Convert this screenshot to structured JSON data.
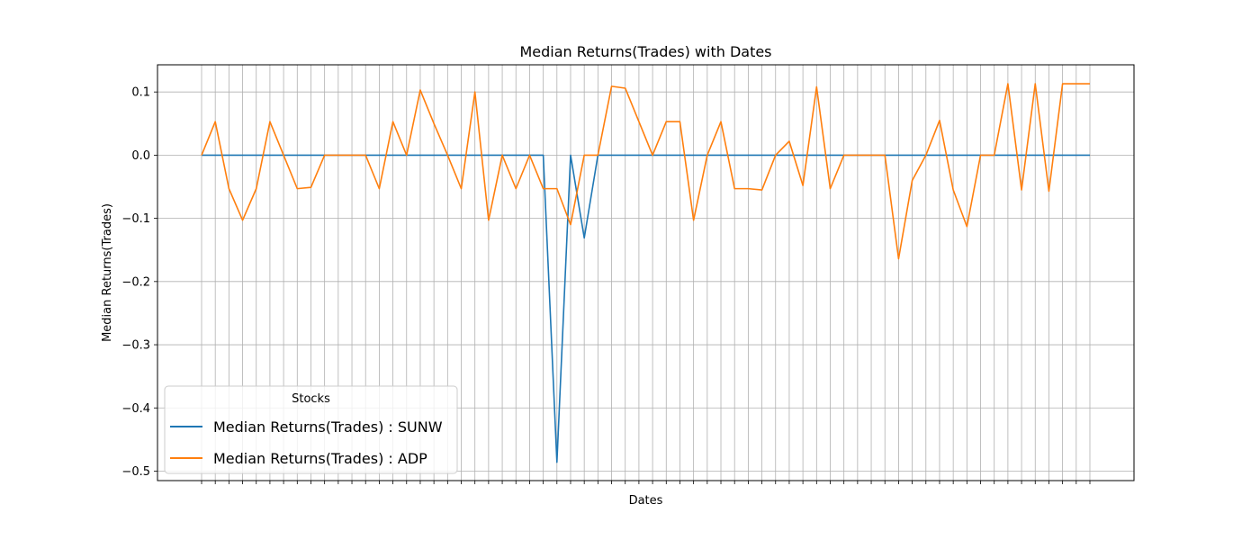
{
  "chart_data": {
    "type": "line",
    "title": "Median Returns(Trades) with Dates",
    "xlabel": "Dates",
    "ylabel": "Median Returns(Trades)",
    "ylim": [
      -0.515,
      0.143
    ],
    "yticks": [
      0.1,
      0.0,
      -0.1,
      -0.2,
      -0.3,
      -0.4,
      -0.5
    ],
    "ytick_labels": [
      "0.1",
      "0.0",
      "−0.1",
      "−0.2",
      "−0.3",
      "−0.4",
      "−0.5"
    ],
    "grid": true,
    "legend": {
      "title": "Stocks",
      "placement": "lower-left"
    },
    "series": [
      {
        "name": "Median Returns(Trades) : SUNW",
        "color": "#1f77b4",
        "values": [
          0,
          0,
          0,
          0,
          0,
          0,
          0,
          0,
          0,
          0,
          0,
          0,
          0,
          0,
          0,
          0,
          0,
          0,
          0,
          0,
          0,
          0,
          0,
          0,
          0,
          0,
          -0.486,
          0,
          -0.131,
          0,
          0,
          0,
          0,
          0,
          0,
          0,
          0,
          0,
          0,
          0,
          0,
          0,
          0,
          0,
          0,
          0,
          0,
          0,
          0,
          0,
          0,
          0,
          0,
          0,
          0,
          0,
          0,
          0,
          0,
          0,
          0,
          0,
          0,
          0,
          0,
          0
        ]
      },
      {
        "name": "Median Returns(Trades) : ADP",
        "color": "#ff7f0e",
        "values": [
          0,
          0.053,
          -0.053,
          -0.103,
          -0.053,
          0.053,
          0,
          -0.053,
          -0.051,
          0,
          0,
          0,
          0,
          -0.053,
          0.053,
          0,
          0.103,
          0.05,
          0,
          -0.053,
          0.1,
          -0.103,
          0,
          -0.053,
          0,
          -0.053,
          -0.053,
          -0.11,
          0,
          0,
          0.109,
          0.106,
          0.053,
          0,
          0.053,
          0.053,
          -0.103,
          0,
          0.053,
          -0.053,
          -0.053,
          -0.055,
          0,
          0.022,
          -0.048,
          0.108,
          -0.053,
          0,
          0,
          0,
          0,
          -0.164,
          -0.04,
          0,
          0.055,
          -0.055,
          -0.113,
          0,
          0,
          0.113,
          -0.055,
          0.113,
          -0.057,
          0.113,
          0.113,
          0.113
        ]
      }
    ]
  }
}
